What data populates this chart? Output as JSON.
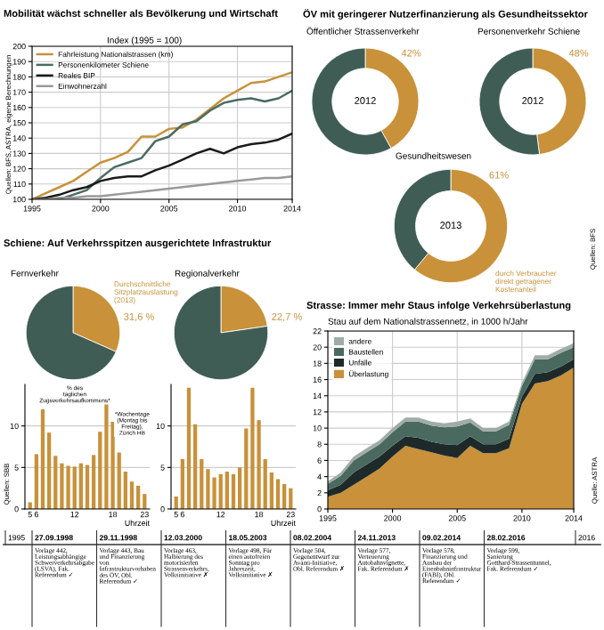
{
  "chart_data": [
    {
      "type": "line",
      "title": "Mobilität wächst schneller als Bevölkerung und Wirtschaft",
      "subtitle": "Index (1995 = 100)",
      "x": [
        1995,
        1996,
        1997,
        1998,
        1999,
        2000,
        2001,
        2002,
        2003,
        2004,
        2005,
        2006,
        2007,
        2008,
        2009,
        2010,
        2011,
        2012,
        2013,
        2014
      ],
      "series": [
        {
          "name": "Fahrleistung Nationalstrassen (km)",
          "color": "#c8913a",
          "values": [
            100,
            104,
            108,
            112,
            118,
            124,
            127,
            131,
            141,
            141,
            146,
            147,
            152,
            159,
            166,
            171,
            176,
            177,
            180,
            183
          ]
        },
        {
          "name": "Personenkilometer Schiene",
          "color": "#4a6b62",
          "values": [
            100,
            100,
            100,
            103,
            106,
            114,
            121,
            124,
            127,
            138,
            141,
            149,
            151,
            158,
            163,
            165,
            166,
            164,
            166,
            171
          ]
        },
        {
          "name": "Reales BIP",
          "color": "#1a1a1a",
          "values": [
            100,
            101,
            103,
            106,
            108,
            112,
            114,
            115,
            115,
            119,
            122,
            126,
            130,
            133,
            130,
            134,
            136,
            137,
            139,
            143
          ]
        },
        {
          "name": "Einwohnerzahl",
          "color": "#9a9a9a",
          "values": [
            100,
            100,
            101,
            101,
            102,
            102,
            103,
            104,
            105,
            106,
            107,
            108,
            109,
            110,
            111,
            112,
            113,
            114,
            114,
            115
          ]
        }
      ],
      "xlim": [
        1995,
        2014
      ],
      "ylim": [
        100,
        200
      ],
      "xticks": [
        1995,
        2000,
        2005,
        2010,
        2014
      ],
      "yticks": [
        100,
        110,
        120,
        130,
        140,
        150,
        160,
        170,
        180,
        190,
        200
      ],
      "grid": true,
      "legend": "top left",
      "annotations": [
        "Quellen: BFS, ASTRA, eigene Berechnungen"
      ]
    },
    {
      "type": "donut",
      "title": "ÖV mit geringerer Nutzerfinanzierung als Gesundheitssektor",
      "subtitle": "Öffentlicher Strassenverkehr",
      "values": [
        42,
        58
      ],
      "colors": [
        "#c8913a",
        "#3f5d55"
      ],
      "value_labels": [
        "42%",
        null
      ],
      "annotations": [
        "2012"
      ]
    },
    {
      "type": "donut",
      "subtitle": "Personenverkehr Schiene",
      "values": [
        48,
        52
      ],
      "colors": [
        "#c8913a",
        "#3f5d55"
      ],
      "value_labels": [
        "48%",
        null
      ],
      "annotations": [
        "2012"
      ]
    },
    {
      "type": "donut",
      "subtitle": "Gesundheitswesen",
      "values": [
        61,
        39
      ],
      "colors": [
        "#c8913a",
        "#3f5d55"
      ],
      "value_labels": [
        "61%",
        null
      ],
      "annotations": [
        "2013",
        "durch Verbraucher direkt getragener Kostenanteil",
        "Quellen: BFS"
      ]
    },
    {
      "type": "pie",
      "title": "Schiene: Auf Verkehrsspitzen ausgerichtete Infrastruktur",
      "subtitle": "Fernverkehr",
      "values": [
        31.6,
        68.4
      ],
      "colors": [
        "#c8913a",
        "#3f5d55"
      ],
      "value_labels": [
        "31,6 %",
        null
      ],
      "annotations": [
        "Durchschnittliche Sitzplatzauslastung (2013)"
      ]
    },
    {
      "type": "pie",
      "subtitle": "Regionalverkehr",
      "values": [
        22.7,
        77.3
      ],
      "colors": [
        "#c8913a",
        "#3f5d55"
      ],
      "value_labels": [
        "22,7 %",
        null
      ]
    },
    {
      "type": "bar",
      "categories": [
        "5",
        "6",
        null,
        null,
        null,
        null,
        null,
        "12",
        null,
        null,
        null,
        null,
        null,
        "18",
        null,
        null,
        null,
        null,
        "23"
      ],
      "values": [
        0.8,
        6.6,
        12,
        9.2,
        6.4,
        5.5,
        5.2,
        5.1,
        5.5,
        5.3,
        6.5,
        9.3,
        12.8,
        10.5,
        6.8,
        4.5,
        3.3,
        2.8,
        1.8
      ],
      "color": "#c8913a",
      "xlabel": "Uhrzeit",
      "ylim": [
        0,
        15
      ],
      "yticks": [
        0,
        5,
        10
      ],
      "grid": "y",
      "annotations": [
        "% des täglichen Zugsverkehrsaufkommens*",
        "*Wochentage (Montag bis Freitag), Zürich HB",
        "Quellen: SBB"
      ]
    },
    {
      "type": "bar",
      "categories": [
        "5",
        "6",
        null,
        null,
        null,
        null,
        null,
        "12",
        null,
        null,
        null,
        null,
        null,
        "18",
        null,
        null,
        null,
        null,
        "23"
      ],
      "values": [
        1.5,
        6,
        14.6,
        10.2,
        6,
        4.8,
        3.8,
        4.2,
        4.5,
        4.2,
        5,
        9.7,
        14.6,
        10.7,
        6,
        4.4,
        3.6,
        3,
        2.5
      ],
      "color": "#c8913a",
      "xlabel": "Uhrzeit",
      "ylim": [
        0,
        15
      ],
      "yticks": [
        0,
        5,
        10
      ],
      "grid": "y"
    },
    {
      "type": "area",
      "stacked": true,
      "title": "Strasse: Immer mehr Staus infolge Verkehrsüberlastung",
      "subtitle": "Stau auf dem Nationalstrassennetz, in 1000 h/Jahr",
      "x": [
        1995,
        1996,
        1997,
        1998,
        1999,
        2000,
        2001,
        2002,
        2003,
        2004,
        2005,
        2006,
        2007,
        2008,
        2009,
        2010,
        2011,
        2012,
        2013,
        2014
      ],
      "series": [
        {
          "name": "Überlastung",
          "color": "#c8913a",
          "values": [
            1.5,
            2,
            3,
            4,
            5,
            6.5,
            7.8,
            7.4,
            7,
            6.6,
            6.3,
            7.8,
            6.9,
            6.9,
            7.5,
            13,
            15.5,
            15.8,
            16.5,
            17.5
          ]
        },
        {
          "name": "Unfälle",
          "color": "#1e2a2a",
          "values": [
            0.8,
            1,
            1.5,
            1.5,
            1.5,
            1.3,
            1.2,
            1.4,
            1.3,
            1.4,
            1.6,
            1.2,
            1.1,
            1.1,
            1.2,
            0.9,
            1.2,
            1.1,
            1.1,
            1
          ]
        },
        {
          "name": "Baustellen",
          "color": "#4a6a60",
          "values": [
            0.8,
            1.1,
            1.5,
            1.5,
            1.5,
            1.7,
            1.8,
            2,
            2,
            2.1,
            2.3,
            1.7,
            1.6,
            1.6,
            1.7,
            1.3,
            1.8,
            1.6,
            1.7,
            1.5
          ]
        },
        {
          "name": "andere",
          "color": "#a0aca8",
          "values": [
            0.3,
            0.4,
            0.5,
            0.5,
            0.5,
            0.5,
            0.5,
            0.5,
            0.5,
            0.5,
            0.6,
            0.5,
            0.4,
            0.4,
            0.4,
            0.4,
            0.5,
            0.5,
            0.5,
            0.5
          ]
        }
      ],
      "xlim": [
        1995,
        2014
      ],
      "ylim": [
        0,
        22
      ],
      "xticks": [
        1995,
        2000,
        2005,
        2010,
        2014
      ],
      "yticks": [
        0,
        2,
        4,
        6,
        8,
        10,
        12,
        14,
        16,
        18,
        20,
        22
      ],
      "grid": true,
      "legend": "top left",
      "annotations": [
        "Quelle: ASTRA"
      ]
    },
    {
      "type": "other",
      "categories": [
        "1995",
        "27.09.1998",
        "29.11.1998",
        "12.03.2000",
        "18.05.2003",
        "08.02.2004",
        "24.11.2013",
        "09.02.2014",
        "28.02.2016",
        "2016"
      ],
      "annotations": [
        "Vorlage 442, Leistungsabhängige Schwerverkehrsabgabe (LSVA), Fak. Referendum ✓",
        "Vorlage 443, Bau und Finanzierung von Infrastrukturvorhaben des ÖV, Obl. Referendum ✓",
        "Vorlage 463, Halbierung des motorisierten Strassenverkehrs, Volksinitiative ✗",
        "Vorlage 498, Für einen autofreien Sonntag pro Jahreszeit, Volksinitiative ✗",
        "Vorlage 504, Gegenentwurf zur Avanti-Initiative, Obl. Referendum ✗",
        "Vorlage 577, Verteuerung Autobahnvignette, Fak. Referendum ✗",
        "Vorlage 578, Finanzierung und Ausbau der Eisenbahninfrastruktur (FABI), Obl. Referendum ✓",
        "Vorlage 599, Sanierung Gotthard-Strassentunnel, Fak. Referendum ✓"
      ]
    }
  ]
}
